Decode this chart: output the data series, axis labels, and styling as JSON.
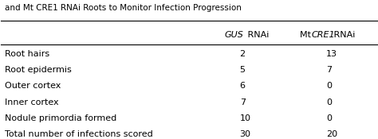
{
  "title_line": "and Mt CRE1 RNAi Roots to Monitor Infection Progression",
  "rows": [
    [
      "Root hairs",
      "2",
      "13"
    ],
    [
      "Root epidermis",
      "5",
      "7"
    ],
    [
      "Outer cortex",
      "6",
      "0"
    ],
    [
      "Inner cortex",
      "7",
      "0"
    ],
    [
      "Nodule primordia formed",
      "10",
      "0"
    ],
    [
      "Total number of infections scored",
      "30",
      "20"
    ]
  ],
  "background_color": "#ffffff",
  "text_color": "#000000",
  "font_size": 8.0
}
